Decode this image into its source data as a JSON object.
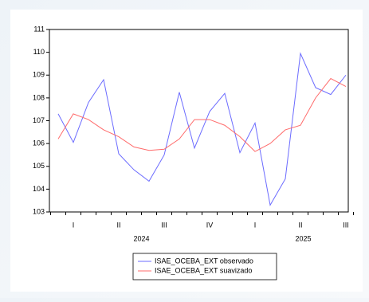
{
  "chart_data": {
    "type": "line",
    "series": [
      {
        "name": "ISAE_OCEBA_EXT observado",
        "color": "#6b6bff",
        "values": [
          107.3,
          106.05,
          107.8,
          108.8,
          105.55,
          104.85,
          104.35,
          105.5,
          108.25,
          105.8,
          107.4,
          108.2,
          105.6,
          106.9,
          103.3,
          104.45,
          109.95,
          108.45,
          108.15,
          109.0
        ]
      },
      {
        "name": "ISAE_OCEBA_EXT suavizado",
        "color": "#ff6b6b",
        "values": [
          106.2,
          107.3,
          107.05,
          106.6,
          106.3,
          105.85,
          105.7,
          105.75,
          106.2,
          107.05,
          107.05,
          106.8,
          106.3,
          105.65,
          106.0,
          106.6,
          106.8,
          108.0,
          108.85,
          108.5
        ]
      }
    ],
    "quarter_labels": [
      "I",
      "II",
      "III",
      "IV",
      "I",
      "II",
      "III"
    ],
    "year_labels": [
      "2024",
      "2025"
    ],
    "ylim": [
      103,
      111
    ],
    "yticks": [
      103,
      104,
      105,
      106,
      107,
      108,
      109,
      110,
      111
    ]
  }
}
